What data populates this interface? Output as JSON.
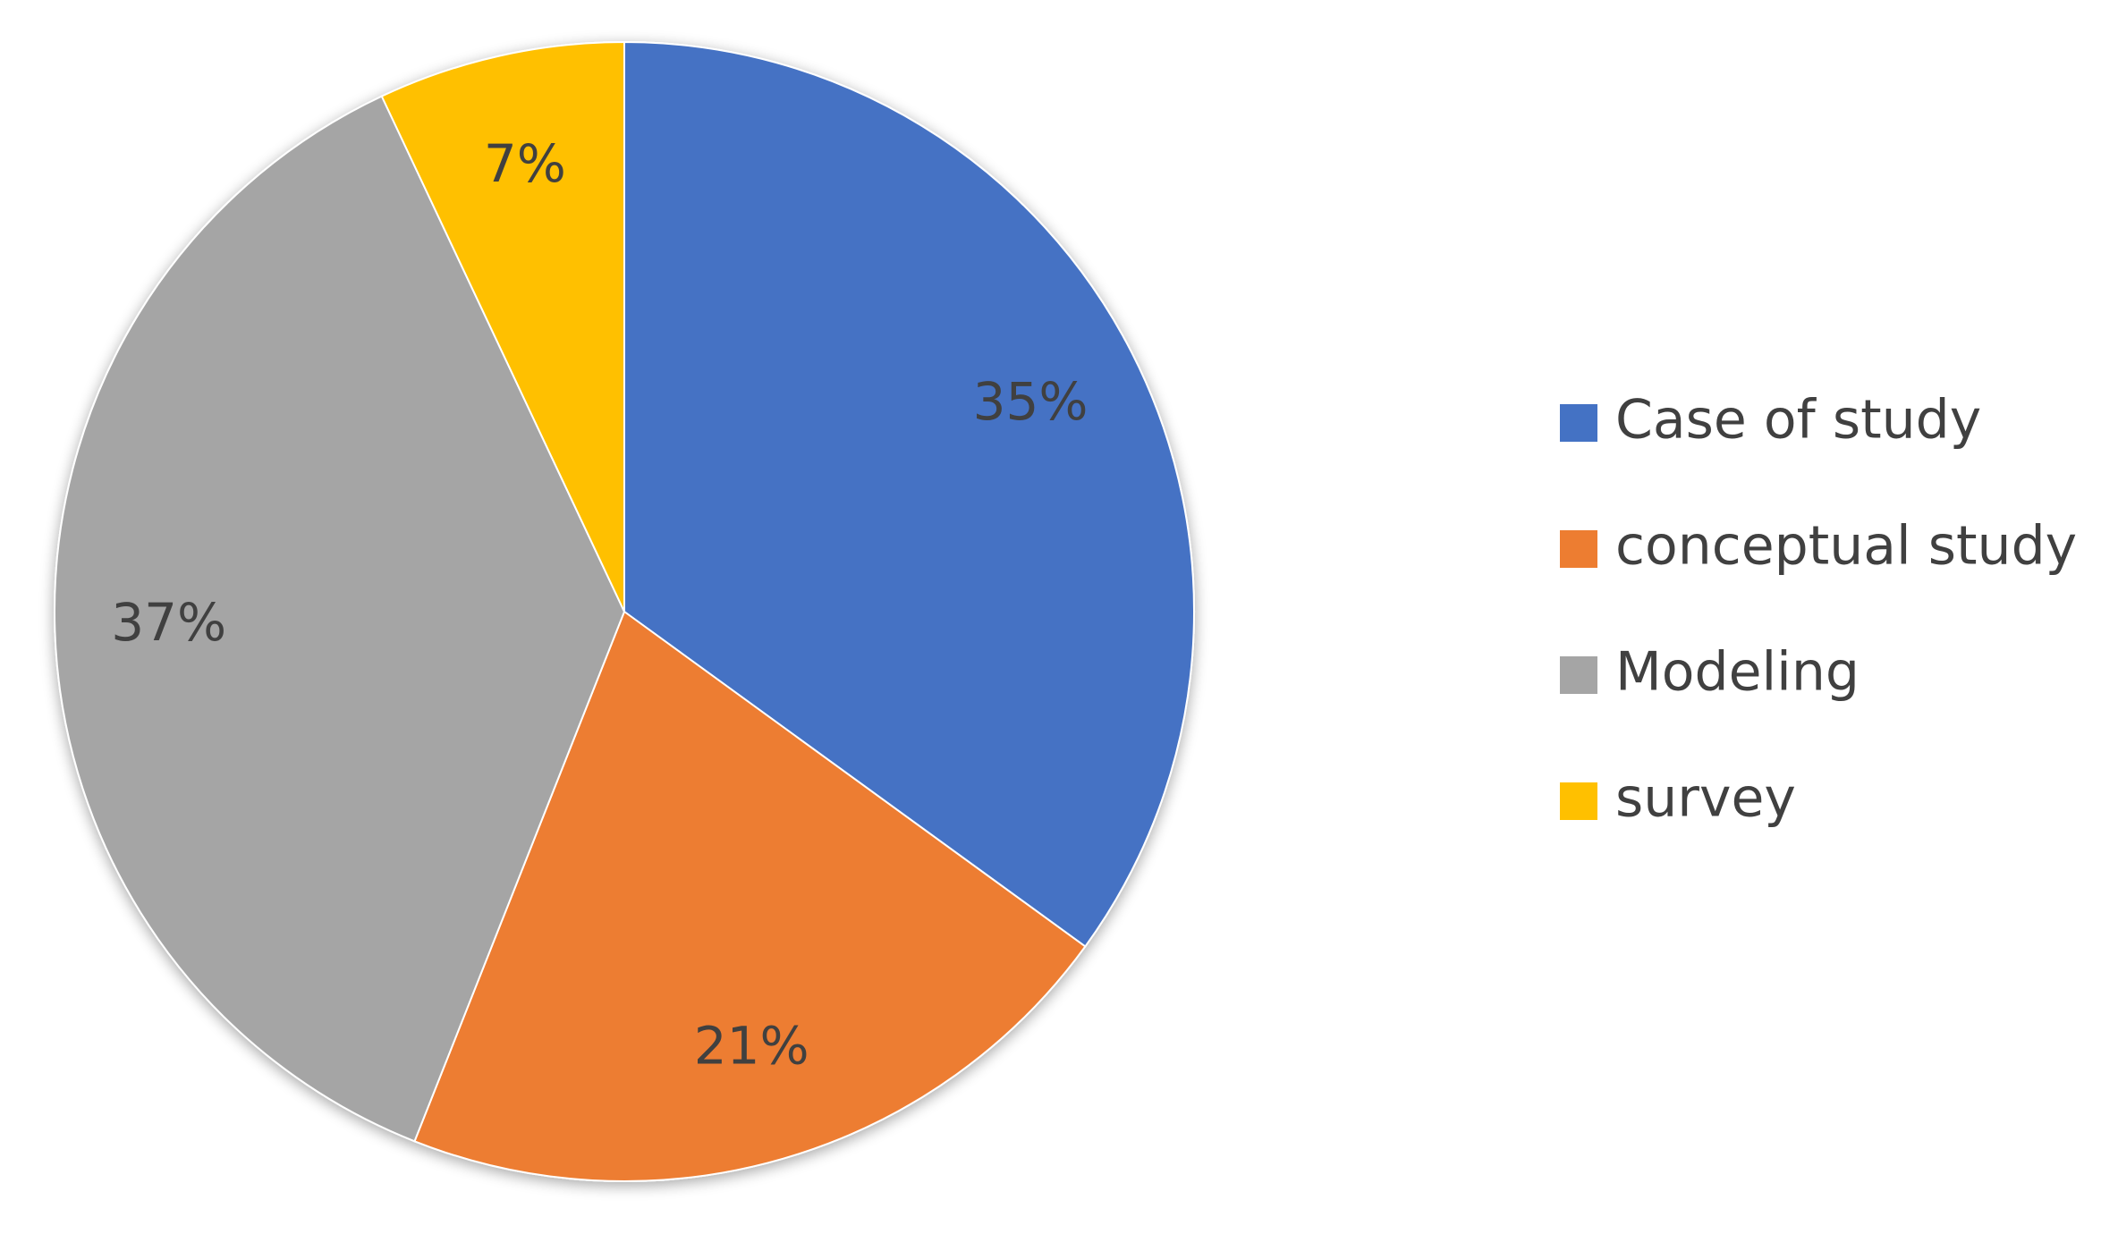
{
  "chart_data": {
    "type": "pie",
    "categories": [
      "Case of study",
      "conceptual study",
      "Modeling",
      "survey"
    ],
    "values": [
      35,
      21,
      37,
      7
    ],
    "value_labels": [
      "35%",
      "21%",
      "37%",
      "7%"
    ],
    "colors": [
      "#4472c4",
      "#ed7d31",
      "#a5a5a5",
      "#ffc000"
    ],
    "legend": "right"
  }
}
